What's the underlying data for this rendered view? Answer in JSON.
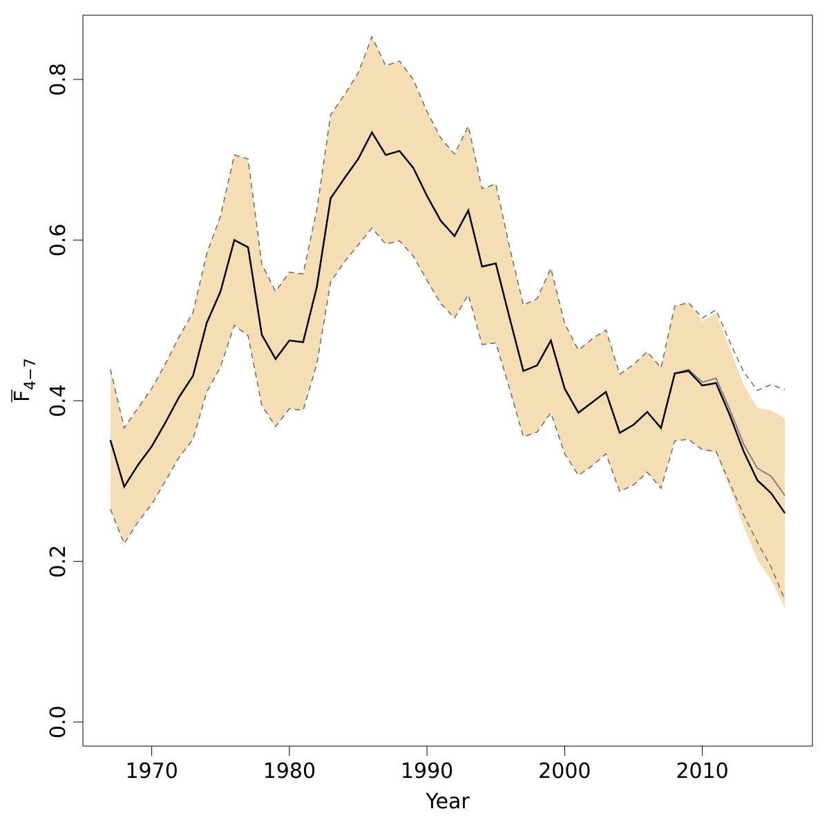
{
  "chart_data": {
    "type": "line",
    "xlabel": "Year",
    "ylabel": {
      "base": "F",
      "subscript": "4−7",
      "overline": true
    },
    "xlim": [
      1965,
      2018
    ],
    "ylim": [
      -0.03,
      0.88
    ],
    "xticks": [
      1970,
      1980,
      1990,
      2000,
      2010
    ],
    "xtick_labels": [
      "1970",
      "1980",
      "1990",
      "2000",
      "2010"
    ],
    "yticks": [
      0.0,
      0.2,
      0.4,
      0.6,
      0.8
    ],
    "ytick_labels": [
      "0.0",
      "0.2",
      "0.4",
      "0.6",
      "0.8"
    ],
    "grid": false,
    "band_color": "#f5deb3",
    "x": [
      1967,
      1968,
      1969,
      1970,
      1971,
      1972,
      1973,
      1974,
      1975,
      1976,
      1977,
      1978,
      1979,
      1980,
      1981,
      1982,
      1983,
      1984,
      1985,
      1986,
      1987,
      1988,
      1989,
      1990,
      1991,
      1992,
      1993,
      1994,
      1995,
      1996,
      1997,
      1998,
      1999,
      2000,
      2001,
      2002,
      2003,
      2004,
      2005,
      2006,
      2007,
      2008,
      2009,
      2010,
      2011,
      2012,
      2013,
      2014,
      2015,
      2016
    ],
    "series": [
      {
        "role": "estimate",
        "color": "#000000",
        "values": [
          0.351,
          0.293,
          0.32,
          0.343,
          0.373,
          0.405,
          0.431,
          0.497,
          0.536,
          0.6,
          0.591,
          0.482,
          0.452,
          0.475,
          0.473,
          0.542,
          0.652,
          0.677,
          0.701,
          0.734,
          0.706,
          0.711,
          0.69,
          0.655,
          0.624,
          0.605,
          0.637,
          0.567,
          0.571,
          0.503,
          0.437,
          0.444,
          0.475,
          0.415,
          0.385,
          0.398,
          0.411,
          0.36,
          0.37,
          0.386,
          0.366,
          0.434,
          0.437,
          0.419,
          0.422,
          0.382,
          0.337,
          0.301,
          0.285,
          0.26
        ]
      },
      {
        "role": "previous-estimate",
        "color": "#808080",
        "values": [
          0.351,
          0.293,
          0.32,
          0.343,
          0.373,
          0.405,
          0.431,
          0.497,
          0.536,
          0.6,
          0.591,
          0.482,
          0.452,
          0.475,
          0.473,
          0.542,
          0.652,
          0.677,
          0.701,
          0.734,
          0.706,
          0.711,
          0.69,
          0.655,
          0.624,
          0.605,
          0.637,
          0.567,
          0.571,
          0.503,
          0.437,
          0.444,
          0.475,
          0.415,
          0.385,
          0.398,
          0.411,
          0.36,
          0.37,
          0.386,
          0.366,
          0.434,
          0.439,
          0.423,
          0.428,
          0.389,
          0.346,
          0.316,
          0.306,
          0.282
        ]
      },
      {
        "role": "band-upper",
        "values": [
          0.439,
          0.366,
          0.391,
          0.415,
          0.446,
          0.48,
          0.51,
          0.583,
          0.63,
          0.706,
          0.701,
          0.57,
          0.536,
          0.56,
          0.558,
          0.638,
          0.756,
          0.781,
          0.808,
          0.853,
          0.817,
          0.823,
          0.8,
          0.76,
          0.727,
          0.707,
          0.742,
          0.664,
          0.67,
          0.591,
          0.519,
          0.527,
          0.565,
          0.496,
          0.463,
          0.477,
          0.488,
          0.433,
          0.445,
          0.461,
          0.441,
          0.518,
          0.522,
          0.499,
          0.509,
          0.465,
          0.42,
          0.391,
          0.388,
          0.378
        ]
      },
      {
        "role": "band-lower",
        "values": [
          0.265,
          0.222,
          0.249,
          0.271,
          0.3,
          0.33,
          0.352,
          0.411,
          0.442,
          0.494,
          0.481,
          0.394,
          0.368,
          0.39,
          0.388,
          0.446,
          0.548,
          0.573,
          0.594,
          0.615,
          0.595,
          0.599,
          0.58,
          0.55,
          0.521,
          0.503,
          0.532,
          0.47,
          0.472,
          0.415,
          0.355,
          0.361,
          0.385,
          0.334,
          0.307,
          0.319,
          0.334,
          0.287,
          0.295,
          0.311,
          0.291,
          0.35,
          0.352,
          0.339,
          0.335,
          0.291,
          0.244,
          0.202,
          0.177,
          0.142
        ]
      },
      {
        "role": "previous-band-upper",
        "color": "#707070",
        "style": "dashed",
        "values": [
          0.439,
          0.366,
          0.391,
          0.415,
          0.446,
          0.48,
          0.51,
          0.583,
          0.63,
          0.706,
          0.701,
          0.57,
          0.536,
          0.56,
          0.558,
          0.638,
          0.756,
          0.781,
          0.808,
          0.853,
          0.817,
          0.823,
          0.8,
          0.76,
          0.727,
          0.707,
          0.742,
          0.664,
          0.67,
          0.591,
          0.519,
          0.527,
          0.565,
          0.496,
          0.463,
          0.477,
          0.488,
          0.433,
          0.445,
          0.461,
          0.441,
          0.518,
          0.522,
          0.503,
          0.513,
          0.473,
          0.436,
          0.413,
          0.42,
          0.414
        ]
      },
      {
        "role": "previous-band-lower",
        "color": "#707070",
        "style": "dashed",
        "values": [
          0.265,
          0.222,
          0.249,
          0.271,
          0.3,
          0.33,
          0.352,
          0.411,
          0.442,
          0.494,
          0.481,
          0.394,
          0.368,
          0.39,
          0.388,
          0.446,
          0.548,
          0.573,
          0.594,
          0.615,
          0.595,
          0.599,
          0.58,
          0.55,
          0.521,
          0.503,
          0.532,
          0.47,
          0.472,
          0.415,
          0.355,
          0.361,
          0.385,
          0.334,
          0.307,
          0.319,
          0.334,
          0.287,
          0.295,
          0.311,
          0.291,
          0.35,
          0.352,
          0.339,
          0.337,
          0.297,
          0.258,
          0.224,
          0.193,
          0.152
        ]
      }
    ]
  }
}
